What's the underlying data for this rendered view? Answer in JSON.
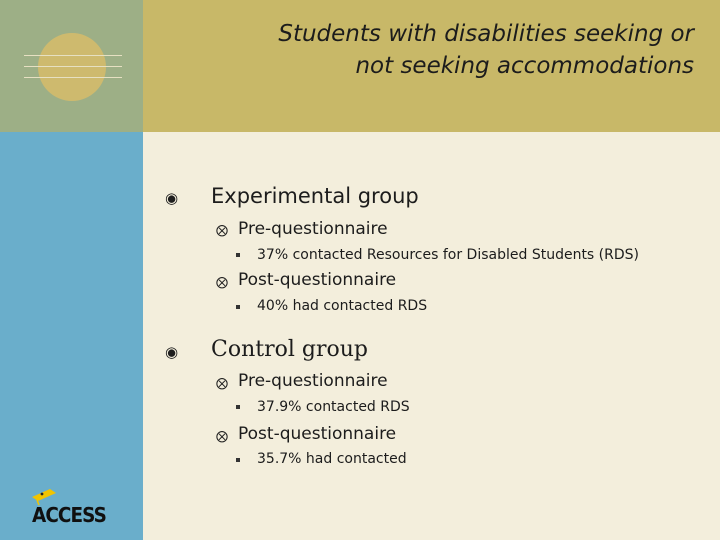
{
  "slide": {
    "title_line1": "Students with disabilities seeking or",
    "title_line2": "not seeking accommodations",
    "logo_text": "ACCESS",
    "groups": [
      {
        "label": "Experimental group",
        "items": [
          {
            "label": "Pre-questionnaire",
            "detail": "37% contacted Resources for Disabled Students (RDS)"
          },
          {
            "label": "Post-questionnaire",
            "detail": "40% had contacted RDS"
          }
        ]
      },
      {
        "label": "Control group",
        "items": [
          {
            "label": "Pre-questionnaire",
            "detail": "37.9% contacted RDS"
          },
          {
            "label": "Post-questionnaire",
            "detail": "35.7% had contacted"
          }
        ]
      }
    ]
  },
  "colors": {
    "background": "#f3eedc",
    "header": "#c8b868",
    "corner": "#9daf86",
    "sidebar": "#6aaecb",
    "accent_circle": "#d7bc6a"
  },
  "icons": {
    "level1": "circled-dot-bullet-icon",
    "level2": "circled-cross-bullet-icon",
    "level3": "square-bullet-icon"
  }
}
